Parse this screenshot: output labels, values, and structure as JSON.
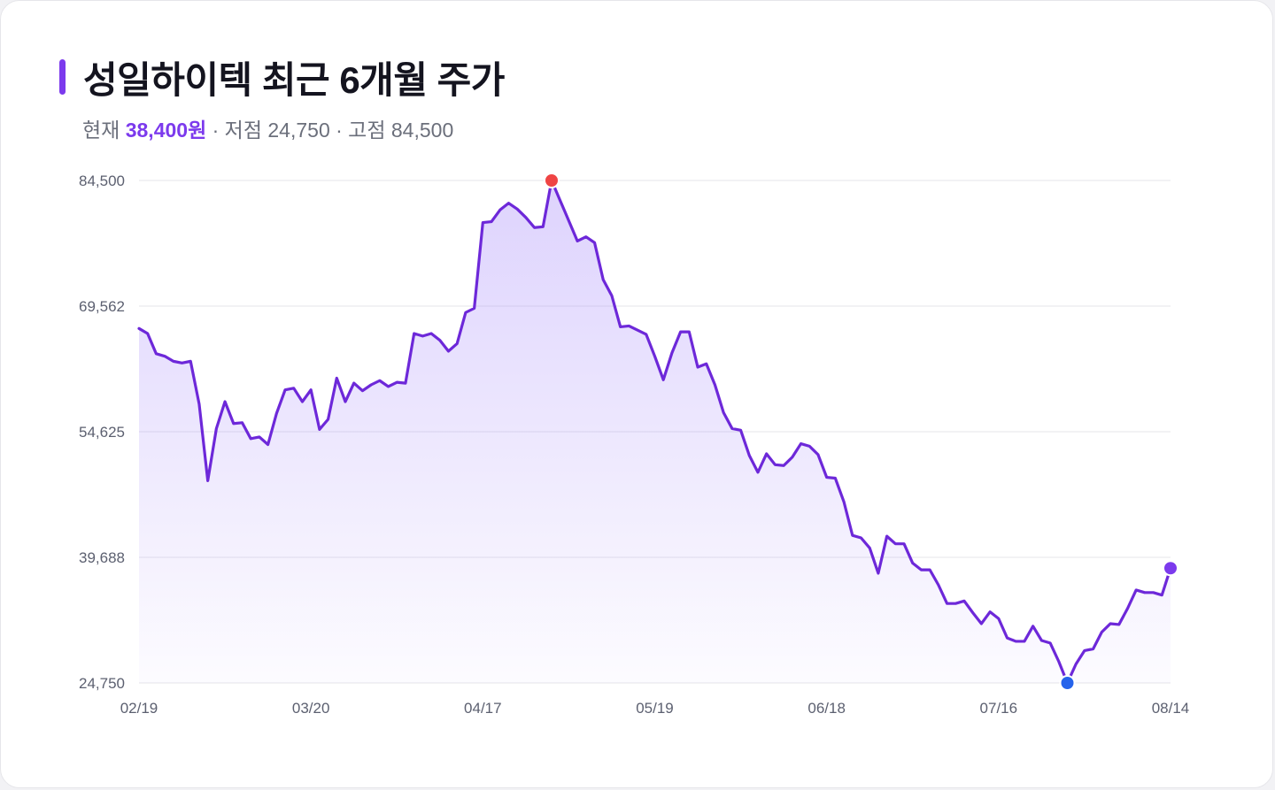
{
  "header": {
    "title": "성일하이텍 최근 6개월 주가",
    "current_label": "현재",
    "current_value": "38,400원",
    "low_text": "· 저점 24,750",
    "high_text": "· 고점 84,500"
  },
  "colors": {
    "accent": "#7c3aed",
    "line": "#6d28d9",
    "high_marker": "#ef4444",
    "low_marker": "#2563eb",
    "last_marker": "#7c3aed",
    "grid": "#e4e4ea"
  },
  "chart_data": {
    "type": "area",
    "ylim": [
      24750,
      84500
    ],
    "y_ticks": [
      "84,500",
      "69,562",
      "54,625",
      "39,688",
      "24,750"
    ],
    "y_tick_values": [
      84500,
      69562,
      54625,
      39688,
      24750
    ],
    "x_ticks": [
      "02/19",
      "03/20",
      "04/17",
      "05/19",
      "06/18",
      "07/16",
      "08/14"
    ],
    "x_tick_index": [
      0,
      20,
      40,
      60,
      80,
      100,
      120
    ],
    "high": {
      "value": 84500,
      "index": 48
    },
    "low": {
      "value": 24750,
      "index": 108
    },
    "last": {
      "value": 38400,
      "index": 120
    },
    "values": [
      66900,
      66300,
      63900,
      63600,
      63000,
      62800,
      63000,
      57900,
      48800,
      55000,
      58200,
      55600,
      55700,
      53800,
      54000,
      53100,
      56800,
      59600,
      59800,
      58200,
      59600,
      54900,
      56100,
      61000,
      58200,
      60400,
      59500,
      60200,
      60700,
      60000,
      60500,
      60400,
      66300,
      66000,
      66300,
      65500,
      64200,
      65100,
      68800,
      69300,
      79500,
      79600,
      81000,
      81800,
      81100,
      80100,
      78900,
      79000,
      84500,
      82100,
      79700,
      77300,
      77800,
      77100,
      72700,
      70800,
      67100,
      67200,
      66700,
      66200,
      63600,
      60800,
      64000,
      66500,
      66500,
      62300,
      62700,
      60200,
      56900,
      55000,
      54800,
      51800,
      49800,
      52000,
      50700,
      50600,
      51600,
      53200,
      52900,
      51900,
      49200,
      49100,
      46300,
      42300,
      42000,
      40800,
      37800,
      42200,
      41300,
      41300,
      39000,
      38200,
      38200,
      36400,
      34200,
      34200,
      34500,
      33100,
      31800,
      33200,
      32400,
      30100,
      29700,
      29700,
      31500,
      29800,
      29500,
      27300,
      24750,
      27000,
      28600,
      28800,
      30800,
      31800,
      31700,
      33600,
      35800,
      35500,
      35500,
      35200,
      38400
    ]
  }
}
